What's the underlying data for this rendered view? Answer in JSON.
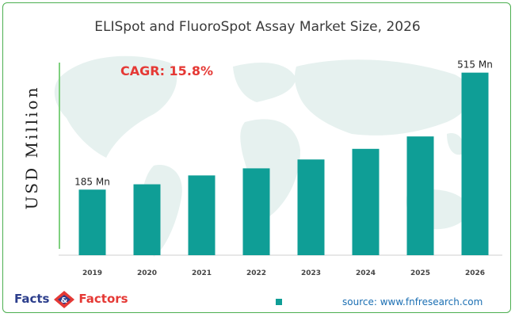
{
  "title": "ELISpot and FluoroSpot Assay Market Size, 2026",
  "cagr_label": "CAGR: 15.8%",
  "source_text": "source: www.fnfresearch.com",
  "logo": {
    "word1": "Facts",
    "word2": "Factors",
    "amp": "&"
  },
  "colors": {
    "bar": "#0f9e96",
    "accent_border": "#4caf50",
    "cagr": "#e53935",
    "logo_blue": "#2c3e8c",
    "logo_red": "#e53935"
  },
  "chart_data": {
    "type": "bar",
    "categories": [
      "2019",
      "2020",
      "2021",
      "2022",
      "2023",
      "2024",
      "2025",
      "2026"
    ],
    "values": [
      185,
      200,
      225,
      245,
      270,
      300,
      335,
      515
    ],
    "ylabel": "USD Million",
    "xlabel": "",
    "ylim": [
      0,
      550
    ],
    "data_labels": [
      {
        "category": "2019",
        "text": "185 Mn"
      },
      {
        "category": "2026",
        "text": "515 Mn"
      }
    ],
    "grid": false,
    "legend": "bottom"
  }
}
